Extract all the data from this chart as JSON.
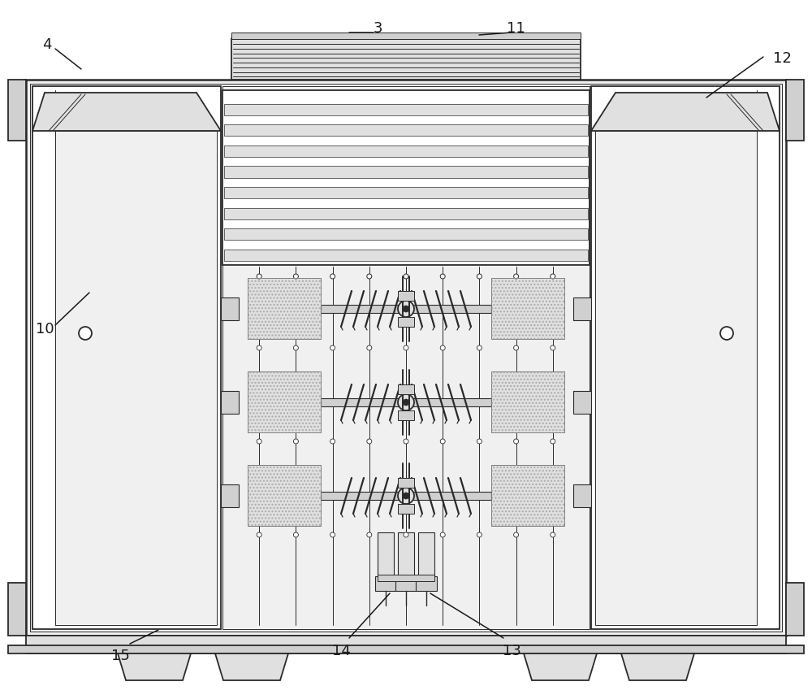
{
  "bg_color": "#ffffff",
  "lc": "#2a2a2a",
  "lw_main": 1.3,
  "lw_thin": 0.7,
  "lw_thick": 1.8,
  "font_sz": 13,
  "ann_color": "#1a1a1a",
  "gray1": "#f0f0f0",
  "gray2": "#e0e0e0",
  "gray3": "#d0d0d0",
  "gray4": "#c8c8c8",
  "white": "#ffffff",
  "hatch_gray": "#cccccc"
}
